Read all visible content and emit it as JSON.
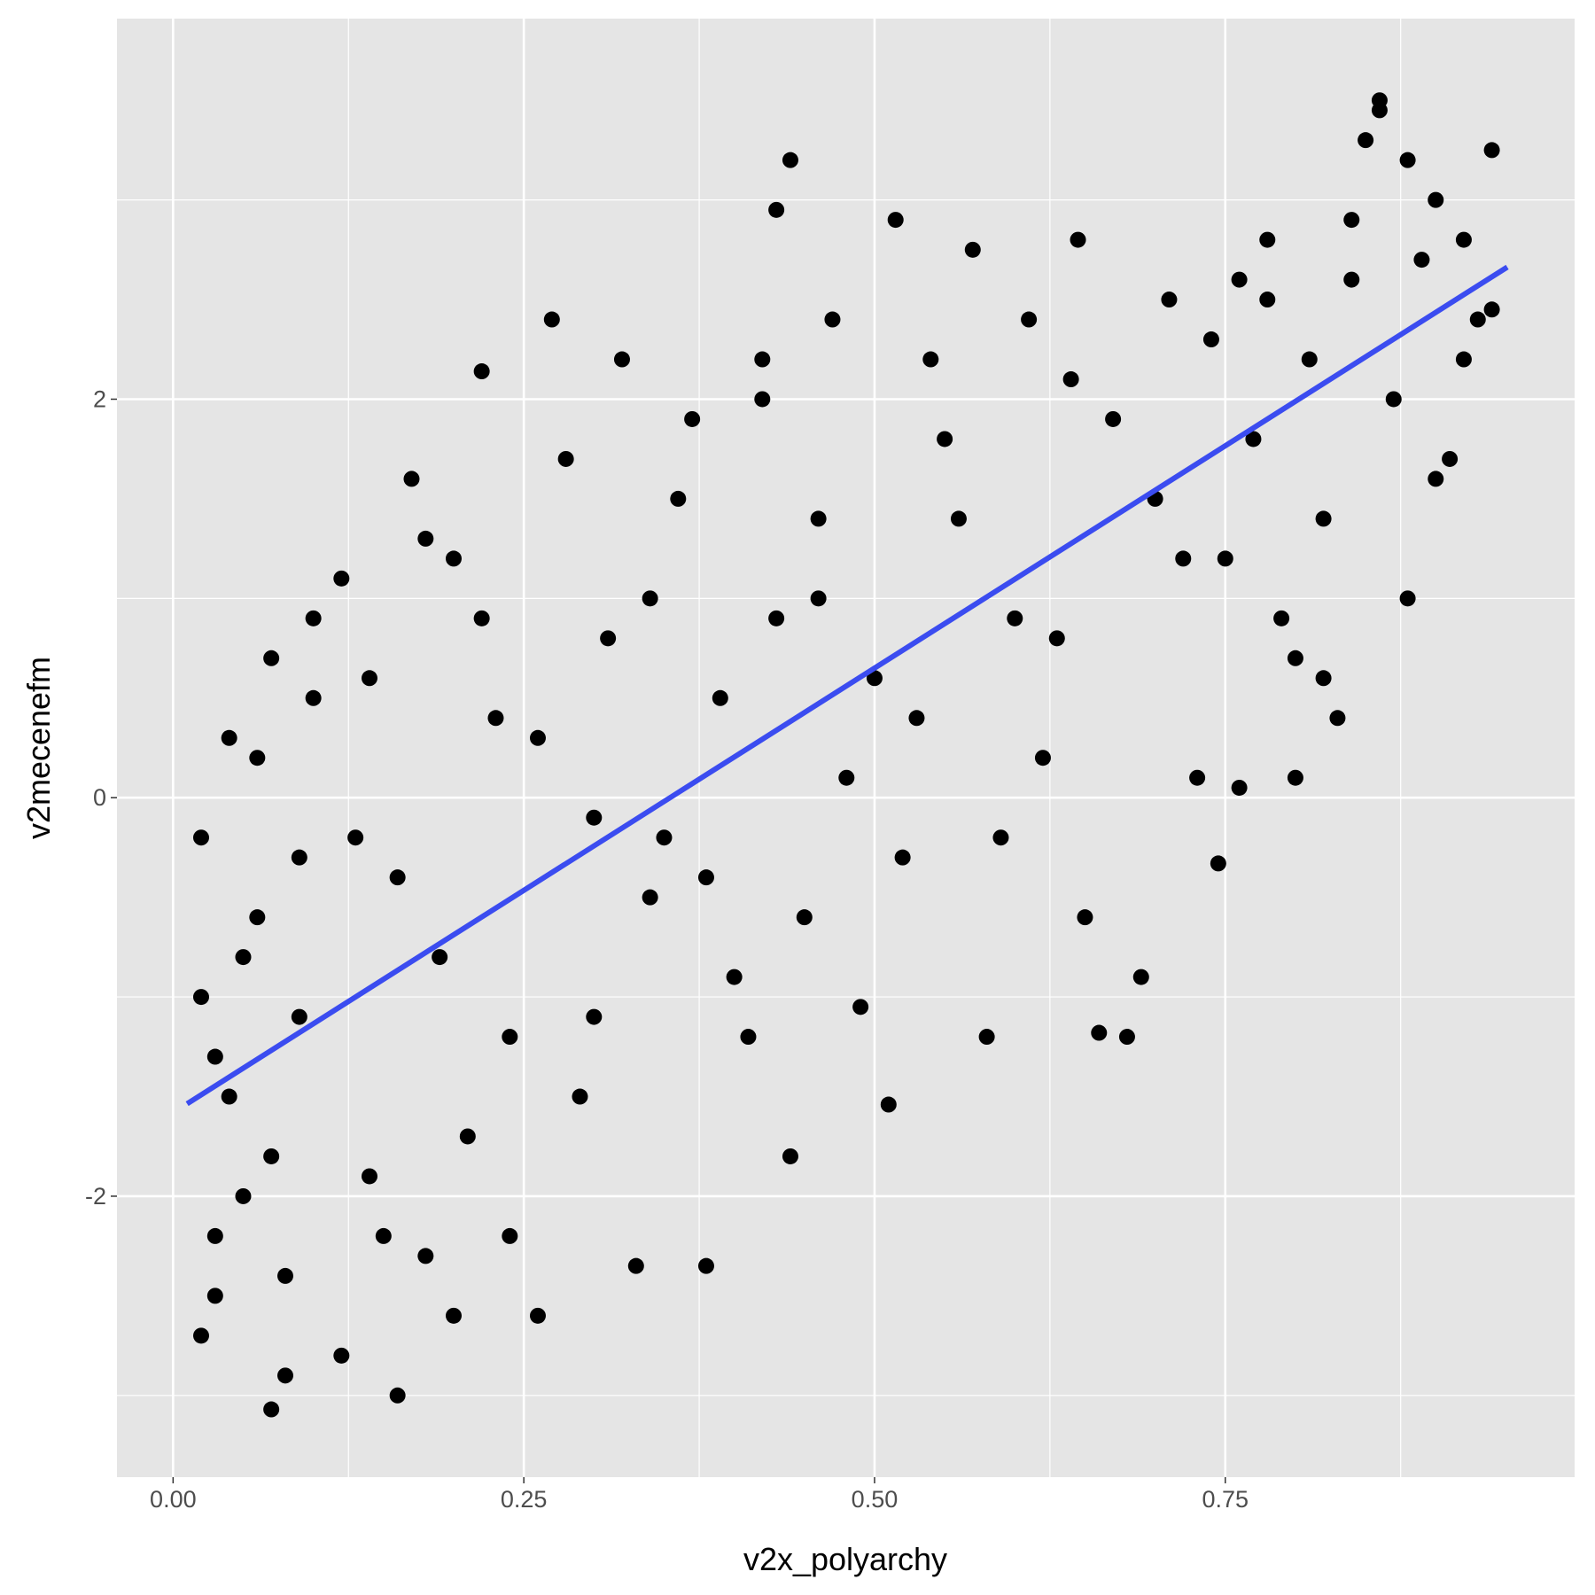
{
  "chart_data": {
    "type": "scatter",
    "x_label": "v2x_polyarchy",
    "y_label": "v2mecenefm",
    "xlim": [
      -0.04,
      0.999
    ],
    "ylim": [
      -3.41,
      3.91
    ],
    "xticks": [
      {
        "value": 0,
        "label": "0.00"
      },
      {
        "value": 0.25,
        "label": "0.25"
      },
      {
        "value": 0.5,
        "label": "0.50"
      },
      {
        "value": 0.75,
        "label": "0.75"
      }
    ],
    "yticks": [
      -2,
      0,
      2
    ],
    "x_minor_grid": [
      0.125,
      0.375,
      0.625,
      0.875
    ],
    "y_minor_grid": [
      -3,
      -1,
      1,
      3
    ],
    "grid": true,
    "panel_color": "#e5e5e5",
    "points": {
      "color": "#000000",
      "x": [
        0.02,
        0.03,
        0.04,
        0.05,
        0.06,
        0.07,
        0.08,
        0.09,
        0.1,
        0.02,
        0.03,
        0.05,
        0.07,
        0.09,
        0.02,
        0.04,
        0.06,
        0.08,
        0.1,
        0.03,
        0.12,
        0.14,
        0.16,
        0.18,
        0.2,
        0.22,
        0.24,
        0.12,
        0.15,
        0.17,
        0.19,
        0.21,
        0.23,
        0.13,
        0.16,
        0.18,
        0.2,
        0.24,
        0.14,
        0.22,
        0.26,
        0.28,
        0.3,
        0.32,
        0.34,
        0.36,
        0.38,
        0.4,
        0.42,
        0.44,
        0.46,
        0.48,
        0.27,
        0.29,
        0.31,
        0.33,
        0.35,
        0.37,
        0.39,
        0.41,
        0.43,
        0.45,
        0.47,
        0.49,
        0.26,
        0.3,
        0.34,
        0.38,
        0.42,
        0.46,
        0.44,
        0.43,
        0.51,
        0.53,
        0.55,
        0.57,
        0.59,
        0.61,
        0.63,
        0.65,
        0.67,
        0.69,
        0.71,
        0.73,
        0.52,
        0.56,
        0.6,
        0.64,
        0.68,
        0.72,
        0.515,
        0.645,
        0.58,
        0.745,
        0.62,
        0.7,
        0.54,
        0.66,
        0.74,
        0.5,
        0.76,
        0.78,
        0.8,
        0.82,
        0.84,
        0.86,
        0.88,
        0.9,
        0.92,
        0.94,
        0.77,
        0.79,
        0.81,
        0.83,
        0.85,
        0.87,
        0.89,
        0.91,
        0.93,
        0.86,
        0.75,
        0.8,
        0.84,
        0.88,
        0.92,
        0.78,
        0.82,
        0.9,
        0.76,
        0.94,
        0.07
      ],
      "y": [
        -2.7,
        -2.2,
        -1.5,
        -0.8,
        0.2,
        0.7,
        -2.9,
        -1.1,
        0.5,
        -1.0,
        -2.5,
        -2.0,
        -1.8,
        -0.3,
        -0.2,
        0.3,
        -0.6,
        -2.4,
        0.9,
        -1.3,
        -2.8,
        -1.9,
        -0.4,
        1.3,
        -2.6,
        0.9,
        -1.2,
        1.1,
        -2.2,
        1.6,
        -0.8,
        -1.7,
        0.4,
        -0.2,
        -3.0,
        -2.3,
        1.2,
        -2.2,
        0.6,
        2.14,
        -2.6,
        1.7,
        -1.1,
        2.2,
        -0.5,
        1.5,
        -2.35,
        -0.9,
        2.2,
        -1.8,
        1.4,
        0.1,
        2.4,
        -1.5,
        0.8,
        -2.35,
        -0.2,
        1.9,
        0.5,
        -1.2,
        0.9,
        -0.6,
        2.4,
        -1.05,
        0.3,
        -0.1,
        1.0,
        -0.4,
        2.0,
        1.0,
        3.2,
        2.95,
        -1.54,
        0.4,
        1.8,
        2.75,
        -0.2,
        2.4,
        0.8,
        -0.6,
        1.9,
        -0.9,
        2.5,
        0.1,
        -0.3,
        1.4,
        0.9,
        2.1,
        -1.2,
        1.2,
        2.9,
        2.8,
        -1.2,
        -0.33,
        0.2,
        1.5,
        2.2,
        -1.18,
        2.3,
        0.6,
        0.05,
        2.8,
        0.7,
        1.4,
        2.6,
        3.5,
        3.2,
        1.6,
        2.8,
        3.25,
        1.8,
        0.9,
        2.2,
        0.4,
        3.3,
        2.0,
        2.7,
        1.7,
        2.4,
        3.45,
        1.2,
        0.1,
        2.9,
        1.0,
        2.2,
        2.5,
        0.6,
        3.0,
        2.6,
        2.45,
        -3.07
      ]
    },
    "fit_line": {
      "color": "#3b4cf0",
      "x": [
        0.01,
        0.951
      ],
      "y": [
        -1.536,
        2.663
      ]
    }
  }
}
